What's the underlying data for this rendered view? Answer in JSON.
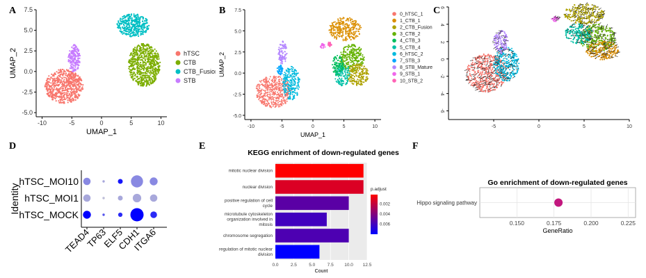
{
  "panel_labels": [
    "A",
    "B",
    "C",
    "D",
    "E",
    "F"
  ],
  "chart_data": [
    {
      "id": "A",
      "type": "scatter",
      "title": "",
      "xlabel": "UMAP_1",
      "ylabel": "UMAP_2",
      "xlim": [
        -11,
        11
      ],
      "ylim": [
        -5.5,
        7.5
      ],
      "xticks": [
        -10,
        -5,
        0,
        5,
        10
      ],
      "yticks": [
        -5.0,
        -2.5,
        0.0,
        2.5,
        5.0,
        7.5
      ],
      "legend": [
        "hTSC",
        "CTB",
        "CTB_Fusion",
        "STB"
      ],
      "colors": [
        "#F8766D",
        "#7CAE00",
        "#00BFC4",
        "#C77CFF"
      ],
      "clusters": [
        {
          "label": "hTSC",
          "cx": -6.3,
          "cy": -1.8,
          "rx": 3.2,
          "ry": 2.1
        },
        {
          "label": "CTB",
          "cx": 7.2,
          "cy": 0.8,
          "rx": 2.7,
          "ry": 2.6
        },
        {
          "label": "CTB_Fusion",
          "cx": 5.3,
          "cy": 5.6,
          "rx": 2.7,
          "ry": 1.4
        },
        {
          "label": "STB",
          "cx": -4.6,
          "cy": 1.6,
          "rx": 1.0,
          "ry": 1.7
        }
      ]
    },
    {
      "id": "B",
      "type": "scatter",
      "title": "",
      "xlabel": "UMAP_1",
      "ylabel": "UMAP_2",
      "xlim": [
        -11,
        11
      ],
      "ylim": [
        -5.5,
        7.5
      ],
      "xticks": [
        -10,
        -5,
        0,
        5,
        10
      ],
      "yticks": [
        -5.0,
        -2.5,
        0.0,
        2.5,
        5.0,
        7.5
      ],
      "legend": [
        "0_hTSC_1",
        "1_CTB_1",
        "2_CTB_Fusion",
        "3_CTB_2",
        "4_CTB_3",
        "5_CTB_4",
        "6_hTSC_2",
        "7_STB_3",
        "8_STB_Mature",
        "9_STB_1",
        "10_STB_2"
      ],
      "colors": [
        "#F8766D",
        "#DB8E00",
        "#AEA200",
        "#64B200",
        "#00BD5C",
        "#00C1A7",
        "#00BADE",
        "#00A6FF",
        "#B385FF",
        "#EF67EB",
        "#FF63B6"
      ],
      "clusters": [
        {
          "label": "0_hTSC_1",
          "cx": -6.4,
          "cy": -2.2,
          "rx": 2.9,
          "ry": 1.9
        },
        {
          "label": "1_CTB_1",
          "cx": 5.2,
          "cy": 5.2,
          "rx": 2.6,
          "ry": 1.4
        },
        {
          "label": "6_hTSC_2",
          "cx": -3.5,
          "cy": -1.2,
          "rx": 1.4,
          "ry": 2.0
        },
        {
          "label": "3_CTB_2",
          "cx": 6.3,
          "cy": 1.8,
          "rx": 2.0,
          "ry": 1.6
        },
        {
          "label": "5_CTB_4",
          "cx": 4.8,
          "cy": -0.2,
          "rx": 1.3,
          "ry": 1.3
        },
        {
          "label": "4_CTB_3",
          "cx": 4.0,
          "cy": 0.9,
          "rx": 0.9,
          "ry": 1.2
        },
        {
          "label": "2_CTB_Fusion",
          "cx": 7.3,
          "cy": -0.2,
          "rx": 1.7,
          "ry": 1.3
        },
        {
          "label": "8_STB_Mature",
          "cx": -4.9,
          "cy": 2.4,
          "rx": 0.7,
          "ry": 1.4
        },
        {
          "label": "7_STB_3",
          "cx": -5.3,
          "cy": 0.4,
          "rx": 0.5,
          "ry": 0.6
        },
        {
          "label": "9_STB_1",
          "cx": 1.6,
          "cy": 3.2,
          "rx": 0.4,
          "ry": 0.3
        },
        {
          "label": "10_STB_2",
          "cx": 2.7,
          "cy": 3.4,
          "rx": 0.3,
          "ry": 0.3
        }
      ]
    },
    {
      "id": "C",
      "type": "scatter",
      "title": "",
      "xlabel": "",
      "ylabel": "",
      "xlim": [
        -10,
        10
      ],
      "ylim": [
        -7,
        6
      ],
      "xticks": [
        -5,
        0,
        5,
        10
      ],
      "yticks": [
        -6,
        -4,
        -2,
        0,
        2,
        4,
        6
      ],
      "clusters": [
        {
          "label": "0_hTSC_1",
          "cx": -5.8,
          "cy": -1.6,
          "rx": 2.2,
          "ry": 2.2,
          "color": "#F8766D"
        },
        {
          "label": "6_hTSC_2",
          "cx": -3.6,
          "cy": -0.6,
          "rx": 1.4,
          "ry": 2.0,
          "color": "#00BADE"
        },
        {
          "label": "8_STB_Mature",
          "cx": -4.2,
          "cy": 2.0,
          "rx": 0.8,
          "ry": 1.4,
          "color": "#B385FF"
        },
        {
          "label": "1_CTB_1",
          "cx": 5.0,
          "cy": 5.2,
          "rx": 2.2,
          "ry": 1.2,
          "color": "#AEA200"
        },
        {
          "label": "3_CTB_2",
          "cx": 6.5,
          "cy": 2.4,
          "rx": 2.0,
          "ry": 1.6,
          "color": "#64B200"
        },
        {
          "label": "5_CTB_4",
          "cx": 4.4,
          "cy": 2.9,
          "rx": 1.5,
          "ry": 1.2,
          "color": "#00C1A7"
        },
        {
          "label": "2_CTB_Fusion",
          "cx": 7.0,
          "cy": 1.0,
          "rx": 1.8,
          "ry": 1.1,
          "color": "#DB8E00"
        },
        {
          "label": "9_STB_1",
          "cx": 1.8,
          "cy": 4.6,
          "rx": 0.4,
          "ry": 0.3,
          "color": "#EF67EB"
        }
      ]
    },
    {
      "id": "D",
      "type": "scatter",
      "title": "",
      "ylabel": "Identity",
      "xlabel": "",
      "categories": [
        "TEAD4",
        "TP63",
        "ELF5",
        "CDH1",
        "ITGA6"
      ],
      "rows": [
        "hTSC_MOI10",
        "hTSC_MOI1",
        "hTSC_MOCK"
      ],
      "size_pct": [
        [
          50,
          8,
          30,
          90,
          55
        ],
        [
          50,
          8,
          30,
          60,
          50
        ],
        [
          55,
          8,
          25,
          100,
          45
        ]
      ],
      "expression": [
        [
          0.35,
          0.2,
          0.9,
          0.35,
          0.35
        ],
        [
          0.2,
          0.1,
          0.2,
          0.2,
          0.2
        ],
        [
          1.0,
          0.6,
          0.8,
          1.0,
          0.8
        ]
      ]
    },
    {
      "id": "E",
      "type": "bar",
      "title": "KEGG enrichment of down-regulated genes",
      "xlabel": "Count",
      "ylabel": "",
      "categories": [
        "mitotic nuclear division",
        "nuclear division",
        "positive regulation of cell cycle",
        "microtubule cytoskeleton organization involved in mitosis",
        "chromosome segregation",
        "regulation of mitotic nuclear division"
      ],
      "values": [
        12,
        12,
        10,
        7,
        10,
        6
      ],
      "p_adjust": [
        0.0001,
        0.0012,
        0.0052,
        0.006,
        0.0056,
        0.008
      ],
      "xlim": [
        0,
        12.5
      ],
      "xticks": [
        "0.0",
        "2.5",
        "5.0",
        "7.5",
        "10.0",
        "12.5"
      ],
      "legend_title": "p.adjust",
      "legend_ticks": [
        "0.002",
        "0.004",
        "0.006"
      ]
    },
    {
      "id": "F",
      "type": "scatter",
      "title": "Go enrichment of down-regulated genes",
      "xlabel": "GeneRatio",
      "ylabel": "",
      "categories": [
        "Hippo signaling pathway"
      ],
      "values": [
        0.178
      ],
      "xlim": [
        0.125,
        0.23
      ],
      "xticks": [
        "0.150",
        "0.175",
        "0.200",
        "0.225"
      ],
      "point_color": "#C2177E"
    }
  ]
}
